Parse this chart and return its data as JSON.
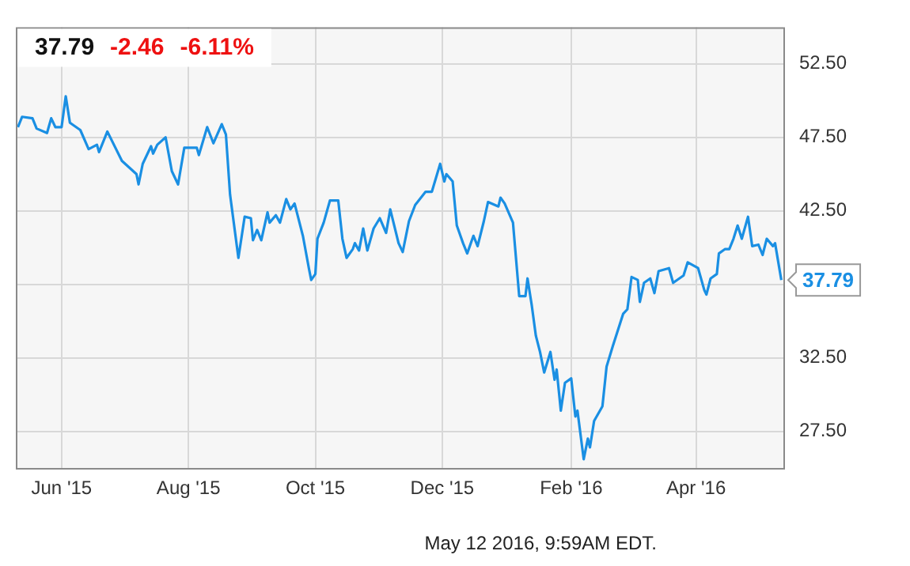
{
  "chart_data": {
    "type": "line",
    "xlim": [
      "2015-05-10",
      "2016-05-13"
    ],
    "ylim": [
      25,
      55
    ],
    "xticks": [
      {
        "value": "2015-06-01",
        "label": "Jun '15"
      },
      {
        "value": "2015-08-01",
        "label": "Aug '15"
      },
      {
        "value": "2015-10-01",
        "label": "Oct '15"
      },
      {
        "value": "2015-12-01",
        "label": "Dec '15"
      },
      {
        "value": "2016-02-01",
        "label": "Feb '16"
      },
      {
        "value": "2016-04-01",
        "label": "Apr '16"
      }
    ],
    "yticks": [
      {
        "value": 27.5,
        "label": "27.50"
      },
      {
        "value": 32.5,
        "label": "32.50"
      },
      {
        "value": 37.5,
        "label": null
      },
      {
        "value": 42.5,
        "label": "42.50"
      },
      {
        "value": 47.5,
        "label": "47.50"
      },
      {
        "value": 52.5,
        "label": "52.50"
      }
    ],
    "grid": true,
    "legend": false,
    "marker": "none",
    "line_style": "solid",
    "series": [
      {
        "color": "#1a8fe3",
        "x": [
          "2015-05-11",
          "2015-05-13",
          "2015-05-18",
          "2015-05-20",
          "2015-05-25",
          "2015-05-27",
          "2015-05-29",
          "2015-06-01",
          "2015-06-03",
          "2015-06-05",
          "2015-06-10",
          "2015-06-14",
          "2015-06-18",
          "2015-06-19",
          "2015-06-23",
          "2015-06-30",
          "2015-07-07",
          "2015-07-08",
          "2015-07-10",
          "2015-07-14",
          "2015-07-15",
          "2015-07-17",
          "2015-07-21",
          "2015-07-24",
          "2015-07-27",
          "2015-07-30",
          "2015-08-05",
          "2015-08-06",
          "2015-08-10",
          "2015-08-13",
          "2015-08-17",
          "2015-08-19",
          "2015-08-21",
          "2015-08-25",
          "2015-08-28",
          "2015-08-31",
          "2015-09-01",
          "2015-09-03",
          "2015-09-05",
          "2015-09-08",
          "2015-09-09",
          "2015-09-12",
          "2015-09-14",
          "2015-09-17",
          "2015-09-19",
          "2015-09-21",
          "2015-09-25",
          "2015-09-28",
          "2015-09-29",
          "2015-10-01",
          "2015-10-02",
          "2015-10-05",
          "2015-10-08",
          "2015-10-12",
          "2015-10-14",
          "2015-10-16",
          "2015-10-19",
          "2015-10-20",
          "2015-10-22",
          "2015-10-24",
          "2015-10-26",
          "2015-10-29",
          "2015-11-01",
          "2015-11-04",
          "2015-11-06",
          "2015-11-10",
          "2015-11-12",
          "2015-11-15",
          "2015-11-18",
          "2015-11-23",
          "2015-11-26",
          "2015-11-30",
          "2015-12-02",
          "2015-12-03",
          "2015-12-06",
          "2015-12-08",
          "2015-12-11",
          "2015-12-13",
          "2015-12-16",
          "2015-12-18",
          "2015-12-21",
          "2015-12-23",
          "2015-12-28",
          "2015-12-29",
          "2015-12-31",
          "2016-01-04",
          "2016-01-07",
          "2016-01-10",
          "2016-01-11",
          "2016-01-13",
          "2016-01-15",
          "2016-01-17",
          "2016-01-19",
          "2016-01-22",
          "2016-01-24",
          "2016-01-25",
          "2016-01-27",
          "2016-01-29",
          "2016-02-01",
          "2016-02-03",
          "2016-02-04",
          "2016-02-07",
          "2016-02-09",
          "2016-02-10",
          "2016-02-12",
          "2016-02-16",
          "2016-02-18",
          "2016-02-21",
          "2016-02-26",
          "2016-02-28",
          "2016-03-01",
          "2016-03-04",
          "2016-03-05",
          "2016-03-07",
          "2016-03-10",
          "2016-03-12",
          "2016-03-14",
          "2016-03-19",
          "2016-03-21",
          "2016-03-26",
          "2016-03-28",
          "2016-04-02",
          "2016-04-05",
          "2016-04-06",
          "2016-04-08",
          "2016-04-11",
          "2016-04-12",
          "2016-04-15",
          "2016-04-17",
          "2016-04-19",
          "2016-04-21",
          "2016-04-23",
          "2016-04-26",
          "2016-04-28",
          "2016-05-01",
          "2016-05-03",
          "2016-05-05",
          "2016-05-08",
          "2016-05-09",
          "2016-05-12"
        ],
        "values": [
          48.2,
          48.9,
          48.8,
          48.1,
          47.8,
          48.8,
          48.2,
          48.2,
          50.3,
          48.5,
          48.0,
          46.7,
          47.0,
          46.5,
          47.9,
          45.9,
          45.0,
          44.3,
          45.7,
          46.9,
          46.4,
          47.0,
          47.5,
          45.2,
          44.3,
          46.8,
          46.8,
          46.3,
          48.2,
          47.1,
          48.4,
          47.7,
          43.6,
          39.3,
          42.1,
          42.0,
          40.5,
          41.2,
          40.5,
          42.4,
          41.7,
          42.2,
          41.7,
          43.3,
          42.6,
          43.0,
          40.8,
          38.5,
          37.8,
          38.2,
          40.6,
          41.7,
          43.2,
          43.2,
          40.6,
          39.3,
          39.9,
          40.3,
          39.8,
          41.3,
          39.8,
          41.3,
          42.0,
          41.0,
          42.6,
          40.3,
          39.7,
          41.8,
          42.9,
          43.8,
          43.8,
          45.7,
          44.5,
          45.0,
          44.5,
          41.5,
          40.3,
          39.6,
          40.8,
          40.1,
          41.8,
          43.1,
          42.8,
          43.4,
          43.0,
          41.7,
          36.7,
          36.7,
          37.9,
          36.1,
          34.0,
          32.9,
          31.5,
          32.9,
          31.0,
          31.7,
          28.9,
          30.8,
          31.1,
          28.5,
          28.9,
          25.6,
          27.0,
          26.4,
          28.2,
          29.2,
          31.9,
          33.3,
          35.5,
          35.8,
          38.0,
          37.8,
          36.3,
          37.6,
          37.9,
          36.9,
          38.4,
          38.6,
          37.6,
          38.1,
          39.0,
          38.6,
          37.1,
          36.8,
          37.9,
          38.2,
          39.6,
          39.9,
          39.9,
          40.6,
          41.5,
          40.6,
          42.1,
          40.1,
          40.2,
          39.5,
          40.6,
          40.1,
          40.3,
          37.79
        ]
      }
    ],
    "annotations": [
      "37.79",
      "-2.46",
      "-6.11%",
      {
        "text": "37.79",
        "x": "2016-05-12",
        "y": 37.79
      },
      "May 12 2016, 9:59AM EDT."
    ]
  }
}
